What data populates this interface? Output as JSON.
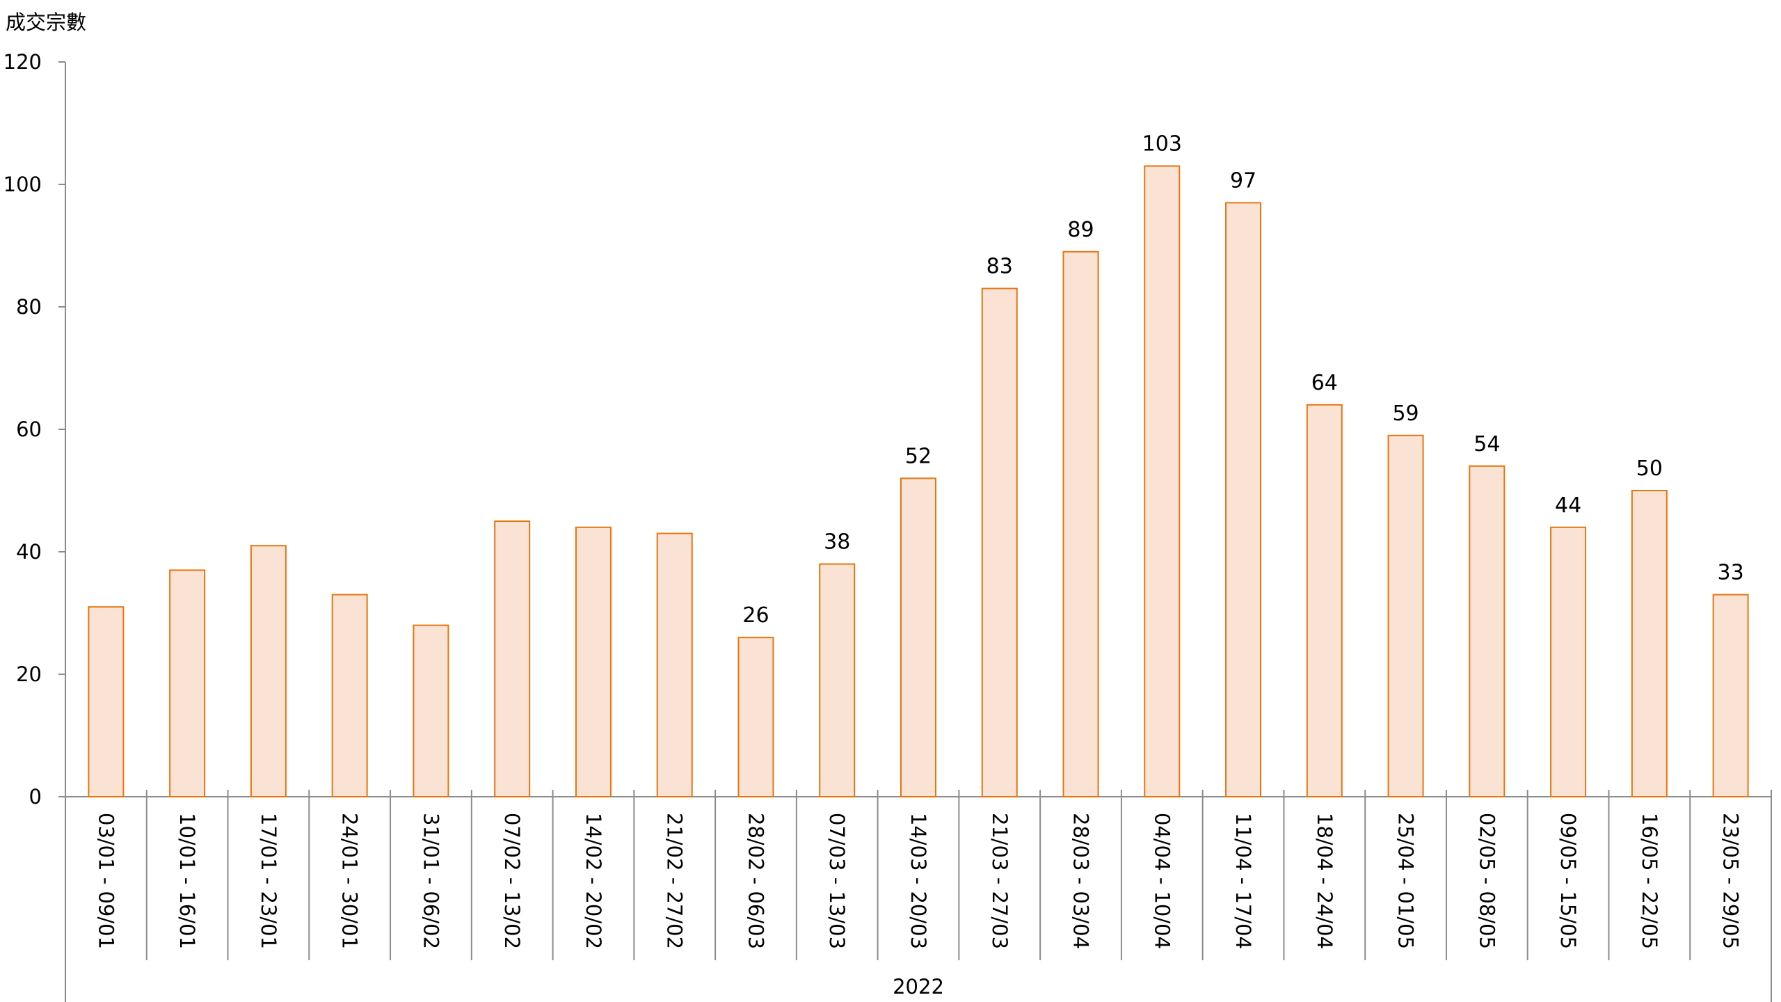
{
  "chart_data": {
    "type": "bar",
    "ylabel": "成交宗數",
    "xgroup_label": "2022",
    "ylim": [
      0,
      120
    ],
    "yticks": [
      0,
      20,
      40,
      60,
      80,
      100,
      120
    ],
    "grid": false,
    "categories": [
      "03/01 - 09/01",
      "10/01 - 16/01",
      "17/01 - 23/01",
      "24/01 - 30/01",
      "31/01 - 06/02",
      "07/02 - 13/02",
      "14/02 - 20/02",
      "21/02 - 27/02",
      "28/02 - 06/03",
      "07/03 - 13/03",
      "14/03 - 20/03",
      "21/03 - 27/03",
      "28/03 - 03/04",
      "04/04 - 10/04",
      "11/04 - 17/04",
      "18/04 - 24/04",
      "25/04 - 01/05",
      "02/05 - 08/05",
      "09/05 - 15/05",
      "16/05 - 22/05",
      "23/05 - 29/05"
    ],
    "values": [
      31,
      37,
      41,
      33,
      28,
      45,
      44,
      43,
      26,
      38,
      52,
      83,
      89,
      103,
      97,
      64,
      59,
      54,
      44,
      50,
      33
    ],
    "data_labels_shown": [
      false,
      false,
      false,
      false,
      false,
      false,
      false,
      false,
      true,
      true,
      true,
      true,
      true,
      true,
      true,
      true,
      true,
      true,
      true,
      true,
      true
    ],
    "colors": {
      "bar_fill": "#fae3d5",
      "bar_stroke": "#e8750e",
      "axis": "#8c8c8c"
    }
  }
}
